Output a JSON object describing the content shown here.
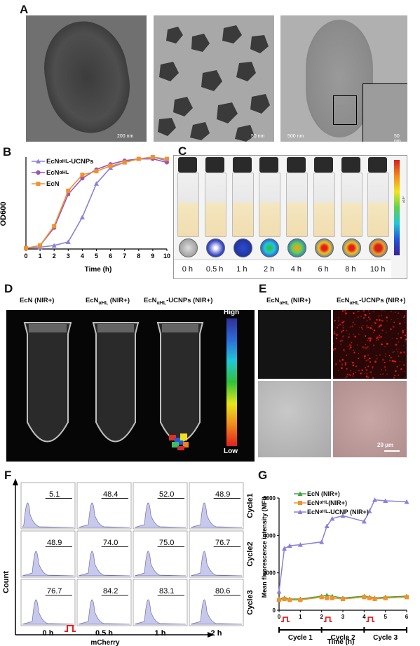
{
  "panels": {
    "A": "A",
    "B": "B",
    "C": "C",
    "D": "D",
    "E": "E",
    "F": "F",
    "G": "G"
  },
  "panelA": {
    "scale_bars": [
      "200 nm",
      "50 nm",
      "500 nm",
      "50 nm"
    ]
  },
  "chart_data": [
    {
      "type": "line",
      "panel": "B",
      "xlabel": "Time (h)",
      "ylabel": "OD600",
      "xlim": [
        0,
        10
      ],
      "ylim": [
        0,
        2.6
      ],
      "x": [
        0,
        1,
        2,
        3,
        4,
        5,
        6,
        7,
        8,
        9,
        10
      ],
      "xticks": [
        "0",
        "1",
        "2",
        "3",
        "4",
        "5",
        "6",
        "7",
        "8",
        "9",
        "10"
      ],
      "legend_position": "top-left",
      "series": [
        {
          "name": "EcNαHL-UCNPs",
          "color": "#8b80d8",
          "marker": "triangle",
          "values": [
            0.02,
            0.05,
            0.1,
            0.2,
            0.9,
            1.85,
            2.3,
            2.45,
            2.55,
            2.6,
            2.5
          ]
        },
        {
          "name": "EcNαHL",
          "color": "#9b55b8",
          "marker": "circle",
          "values": [
            0.02,
            0.1,
            0.6,
            1.55,
            2.0,
            2.25,
            2.4,
            2.5,
            2.55,
            2.55,
            2.45
          ]
        },
        {
          "name": "EcN",
          "color": "#f0922e",
          "marker": "square",
          "values": [
            0.02,
            0.1,
            0.65,
            1.65,
            2.1,
            2.2,
            2.35,
            2.45,
            2.55,
            2.6,
            2.55
          ]
        }
      ]
    },
    {
      "type": "line",
      "panel": "G",
      "ylabel": "Mean fluorescence intensity (MFI)",
      "xlabel": "Time (h)",
      "xlim": [
        0,
        6
      ],
      "ylim": [
        0,
        6000
      ],
      "x": [
        0,
        0.25,
        0.5,
        1,
        2,
        2.25,
        2.5,
        3,
        4,
        4.25,
        4.5,
        5,
        6
      ],
      "xticks": [
        "0",
        "1",
        "2",
        "3",
        "4",
        "5",
        "6"
      ],
      "yticks": [
        "0",
        "2000",
        "4000",
        "6000"
      ],
      "cycles": [
        "Cycle 1",
        "Cycle 2",
        "Cycle 3"
      ],
      "series": [
        {
          "name": "EcN (NIR+)",
          "color": "#3fa53f",
          "marker": "triangle",
          "values": [
            600,
            650,
            600,
            600,
            750,
            800,
            750,
            650,
            750,
            700,
            650,
            700,
            750
          ]
        },
        {
          "name": "EcNαHL (NIR+)",
          "color": "#f0922e",
          "marker": "square",
          "values": [
            550,
            600,
            550,
            550,
            700,
            650,
            650,
            600,
            700,
            650,
            600,
            650,
            700
          ]
        },
        {
          "name": "EcNαHL-UCNP (NIR+)",
          "color": "#8b80d8",
          "marker": "triangle",
          "values": [
            1000,
            3300,
            3450,
            3500,
            3650,
            4500,
            4900,
            5050,
            4750,
            5300,
            5900,
            5850,
            5800
          ]
        }
      ]
    },
    {
      "type": "histogram",
      "panel": "F",
      "xlabel": "mCherry",
      "ylabel": "Count",
      "columns": [
        "0 h",
        "0.5 h",
        "1 h",
        "2 h"
      ],
      "rows": [
        "Cycle1",
        "Cycle2",
        "Cycle3"
      ],
      "values": [
        [
          "5.1",
          "48.4",
          "52.0",
          "48.9"
        ],
        [
          "48.9",
          "74.0",
          "75.0",
          "76.7"
        ],
        [
          "76.7",
          "84.2",
          "83.1",
          "80.6"
        ]
      ]
    }
  ],
  "panelB_legend": [
    {
      "base": "EcN",
      "sub": "αHL",
      "suffix": "-UCNPs"
    },
    {
      "base": "EcN",
      "sub": "αHL",
      "suffix": ""
    },
    {
      "base": "EcN",
      "sub": "",
      "suffix": ""
    }
  ],
  "panelC": {
    "times": [
      "0 h",
      "0.5 h",
      "1 h",
      "2 h",
      "4 h",
      "6 h",
      "8 h",
      "10 h"
    ],
    "colorbar_unit": "x10⁶",
    "colorbar_ticks": [
      "4.0",
      "3.0",
      "2.0",
      "1.0"
    ]
  },
  "panelD": {
    "labels": [
      "EcN (NIR+)",
      "EcNαHL (NIR+)",
      "EcNαHL-UCNPs (NIR+)"
    ],
    "scale_high": "High",
    "scale_low": "Low"
  },
  "panelE": {
    "headers": [
      "EcNαHL (NIR+)",
      "EcNαHL-UCNPs (NIR+)"
    ],
    "scale_bar": "20 μm"
  },
  "panelG_legend": [
    {
      "base": "EcN (NIR+)",
      "sub": "",
      "suffix": ""
    },
    {
      "base": "EcN",
      "sub": "αHL",
      "suffix": " (NIR+)"
    },
    {
      "base": "EcN",
      "sub": "αHL",
      "suffix": "-UCNP (NIR+)"
    }
  ]
}
